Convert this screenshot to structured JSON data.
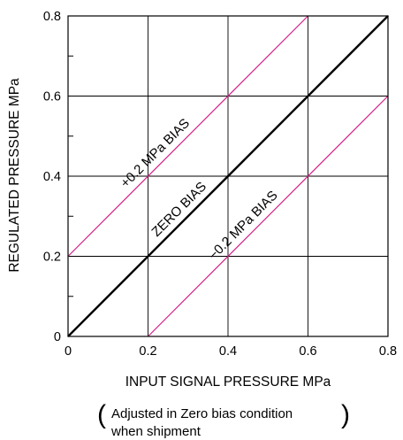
{
  "chart_data": {
    "type": "line",
    "xlabel": "INPUT SIGNAL PRESSURE  MPa",
    "ylabel": "REGULATED PRESSURE  MPa",
    "xlim": [
      0,
      0.8
    ],
    "ylim": [
      0,
      0.8
    ],
    "grid": true,
    "x_ticks": [
      "0",
      "0.2",
      "0.4",
      "0.6",
      "0.8"
    ],
    "y_ticks": [
      "0",
      "0.2",
      "0.4",
      "0.6",
      "0.8"
    ],
    "series": [
      {
        "name": "+0.2 MPa BIAS",
        "color": "#d6208a",
        "x": [
          0,
          0.6
        ],
        "y": [
          0.2,
          0.8
        ]
      },
      {
        "name": "ZERO BIAS",
        "color": "#000000",
        "x": [
          0,
          0.8
        ],
        "y": [
          0,
          0.8
        ]
      },
      {
        "name": "−0.2 MPa BIAS",
        "color": "#d6208a",
        "x": [
          0.2,
          0.8
        ],
        "y": [
          0,
          0.6
        ]
      }
    ],
    "annotations": [
      {
        "series": 0,
        "text": "+0.2 MPa BIAS"
      },
      {
        "series": 1,
        "text": "ZERO BIAS"
      },
      {
        "series": 2,
        "text": "−0.2 MPa BIAS"
      }
    ],
    "note": {
      "line1": "Adjusted in Zero bias condition",
      "line2": "when shipment"
    }
  }
}
